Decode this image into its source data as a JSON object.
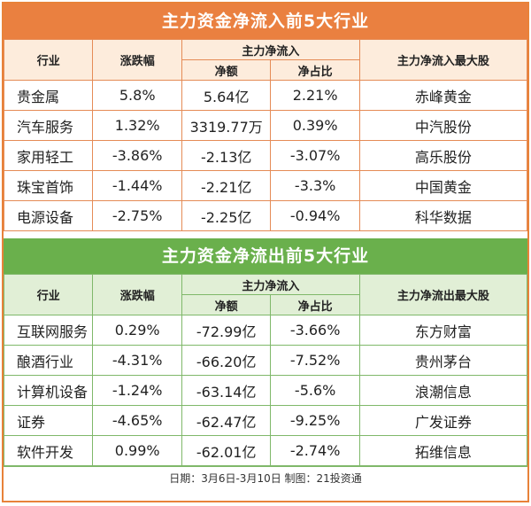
{
  "inflow": {
    "title": "主力资金净流入前5大行业",
    "headers": {
      "industry": "行业",
      "change": "涨跌幅",
      "main_flow": "主力净流入",
      "net": "净额",
      "ratio": "净占比",
      "top_stock": "主力净流入最大股"
    },
    "rows": [
      {
        "industry": "贵金属",
        "change": "5.8%",
        "net": "5.64亿",
        "ratio": "2.21%",
        "stock": "赤峰黄金"
      },
      {
        "industry": "汽车服务",
        "change": "1.32%",
        "net": "3319.77万",
        "ratio": "0.39%",
        "stock": "中汽股份"
      },
      {
        "industry": "家用轻工",
        "change": "-3.86%",
        "net": "-2.13亿",
        "ratio": "-3.07%",
        "stock": "高乐股份"
      },
      {
        "industry": "珠宝首饰",
        "change": "-1.44%",
        "net": "-2.21亿",
        "ratio": "-3.3%",
        "stock": "中国黄金"
      },
      {
        "industry": "电源设备",
        "change": "-2.75%",
        "net": "-2.25亿",
        "ratio": "-0.94%",
        "stock": "科华数据"
      }
    ]
  },
  "outflow": {
    "title": "主力资金净流出前5大行业",
    "headers": {
      "industry": "行业",
      "change": "涨跌幅",
      "main_flow": "主力净流入",
      "net": "净额",
      "ratio": "净占比",
      "top_stock": "主力净流出最大股"
    },
    "rows": [
      {
        "industry": "互联网服务",
        "change": "0.29%",
        "net": "-72.99亿",
        "ratio": "-3.66%",
        "stock": "东方财富"
      },
      {
        "industry": "酿酒行业",
        "change": "-4.31%",
        "net": "-66.20亿",
        "ratio": "-7.52%",
        "stock": "贵州茅台"
      },
      {
        "industry": "计算机设备",
        "change": "-1.24%",
        "net": "-63.14亿",
        "ratio": "-5.6%",
        "stock": "浪潮信息"
      },
      {
        "industry": "证券",
        "change": "-4.65%",
        "net": "-62.47亿",
        "ratio": "-9.25%",
        "stock": "广发证券"
      },
      {
        "industry": "软件开发",
        "change": "0.99%",
        "net": "-62.01亿",
        "ratio": "-2.74%",
        "stock": "拓维信息"
      }
    ]
  },
  "footer": "日期：3月6日-3月10日 制图：21投资通",
  "colors": {
    "orange": "#ea8040",
    "green": "#6ab04c"
  }
}
